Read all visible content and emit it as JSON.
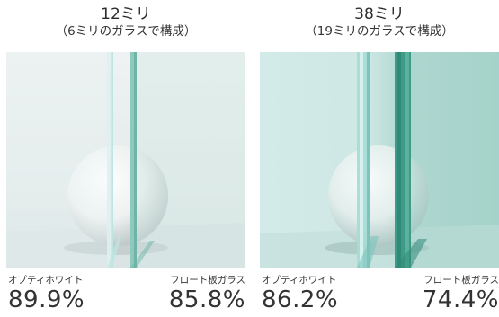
{
  "panels": [
    {
      "title": "12ミリ",
      "subtitle": "（6ミリのガラスで構成）",
      "left_label": "オプティホワイト",
      "left_value": "89.9%",
      "right_label": "フロート板ガラス",
      "right_value": "85.8%"
    },
    {
      "title": "38ミリ",
      "subtitle": "（19ミリのガラスで構成）",
      "left_label": "オプティホワイト",
      "left_value": "86.2%",
      "right_label": "フロート板ガラス",
      "right_value": "74.4%"
    }
  ],
  "colors": {
    "optiwhite_edge": "#bfe5e3",
    "float_edge_thin": "#6fb5a7",
    "float_edge_thick": "#2f8a78",
    "background_light": "#e6eeee",
    "background_tint": "#c9e4e1"
  }
}
